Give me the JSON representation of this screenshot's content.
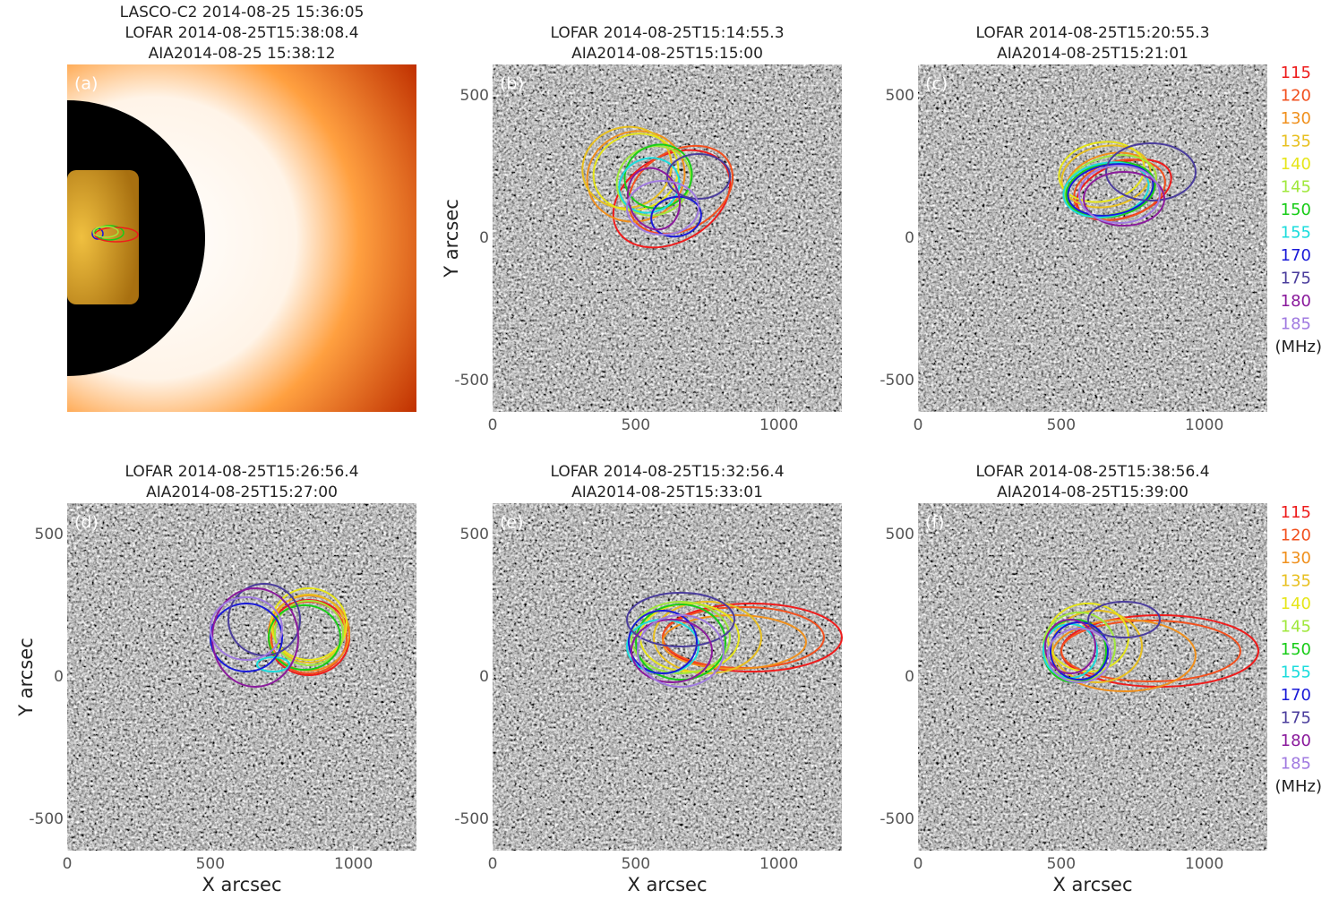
{
  "panels": [
    {
      "label": "(a)",
      "title": [
        "LASCO-C2 2014-08-25 15:36:05",
        "LOFAR 2014-08-25T15:38:08.4",
        "AIA2014-08-25 15:38:12"
      ]
    },
    {
      "label": "(b)",
      "title": [
        "LOFAR 2014-08-25T15:14:55.3",
        "AIA2014-08-25T15:15:00"
      ]
    },
    {
      "label": "(c)",
      "title": [
        "LOFAR 2014-08-25T15:20:55.3",
        "AIA2014-08-25T15:21:01"
      ]
    },
    {
      "label": "(d)",
      "title": [
        "LOFAR 2014-08-25T15:26:56.4",
        "AIA2014-08-25T15:27:00"
      ]
    },
    {
      "label": "(e)",
      "title": [
        "LOFAR 2014-08-25T15:32:56.4",
        "AIA2014-08-25T15:33:01"
      ]
    },
    {
      "label": "(f)",
      "title": [
        "LOFAR 2014-08-25T15:38:56.4",
        "AIA2014-08-25T15:39:00"
      ]
    }
  ],
  "axes": {
    "xlabel": "X arcsec",
    "ylabel": "Y arcsec",
    "xlim": [
      0,
      1220
    ],
    "ylim": [
      -610,
      610
    ],
    "xticks": [
      0,
      500,
      1000
    ],
    "yticks": [
      500,
      0,
      -500
    ]
  },
  "legend": {
    "items": [
      {
        "label": "115",
        "color": "#ee1c1c"
      },
      {
        "label": "120",
        "color": "#f2501e"
      },
      {
        "label": "130",
        "color": "#f0901c"
      },
      {
        "label": "135",
        "color": "#e8c020"
      },
      {
        "label": "140",
        "color": "#e6e61a"
      },
      {
        "label": "145",
        "color": "#a0e83c"
      },
      {
        "label": "150",
        "color": "#18cc18"
      },
      {
        "label": "155",
        "color": "#1cdcdc"
      },
      {
        "label": "170",
        "color": "#1a1ad8"
      },
      {
        "label": "175",
        "color": "#4a3c9c"
      },
      {
        "label": "180",
        "color": "#8a1a9c"
      },
      {
        "label": "185",
        "color": "#a07ae0"
      }
    ],
    "unit": "(MHz)"
  }
}
